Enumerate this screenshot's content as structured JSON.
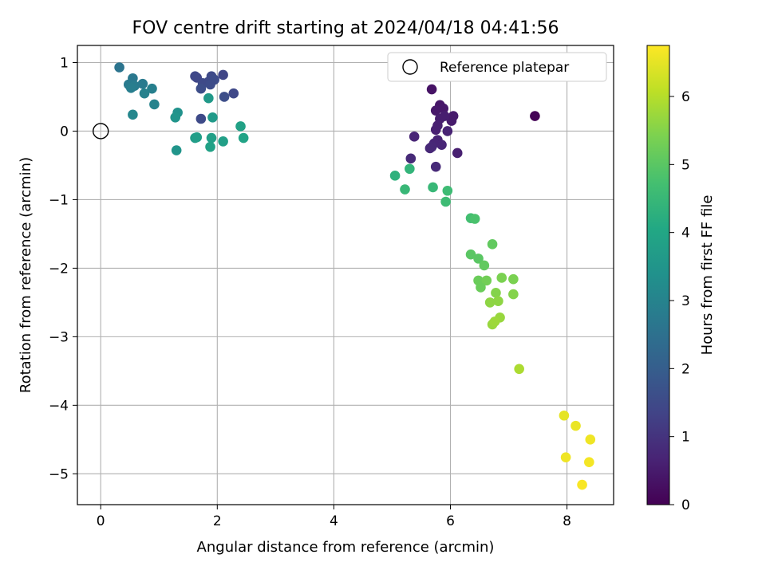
{
  "chart_data": {
    "type": "scatter",
    "title": "FOV centre drift starting at 2024/04/18 04:41:56",
    "xlabel": "Angular distance from reference (arcmin)",
    "ylabel": "Rotation from reference (arcmin)",
    "colorbar_label": "Hours from first FF file",
    "xlim": [
      -0.4,
      8.8
    ],
    "ylim": [
      -5.45,
      1.25
    ],
    "clim": [
      0,
      6.75
    ],
    "colormap": "viridis",
    "grid": true,
    "legend_position": "top-right",
    "x_ticks": [
      0,
      2,
      4,
      6,
      8
    ],
    "y_ticks": [
      1,
      0,
      -1,
      -2,
      -3,
      -4,
      -5
    ],
    "colorbar_ticks": [
      0,
      1,
      2,
      3,
      4,
      5,
      6
    ],
    "reference_marker": {
      "label": "Reference platepar",
      "x": 0,
      "y": 0
    },
    "points": [
      {
        "x": 7.45,
        "y": 0.22,
        "c": 0.05
      },
      {
        "x": 5.68,
        "y": 0.61,
        "c": 0.35
      },
      {
        "x": 5.82,
        "y": 0.38,
        "c": 0.4
      },
      {
        "x": 5.88,
        "y": 0.33,
        "c": 0.45
      },
      {
        "x": 5.75,
        "y": 0.3,
        "c": 0.45
      },
      {
        "x": 6.05,
        "y": 0.22,
        "c": 0.5
      },
      {
        "x": 6.02,
        "y": 0.15,
        "c": 0.5
      },
      {
        "x": 5.82,
        "y": 0.18,
        "c": 0.55
      },
      {
        "x": 5.9,
        "y": 0.22,
        "c": 0.55
      },
      {
        "x": 5.78,
        "y": 0.08,
        "c": 0.6
      },
      {
        "x": 5.75,
        "y": 0.02,
        "c": 0.6
      },
      {
        "x": 5.95,
        "y": 0.0,
        "c": 0.65
      },
      {
        "x": 5.38,
        "y": -0.08,
        "c": 0.7
      },
      {
        "x": 5.78,
        "y": -0.13,
        "c": 0.65
      },
      {
        "x": 5.72,
        "y": -0.18,
        "c": 0.7
      },
      {
        "x": 5.85,
        "y": -0.2,
        "c": 0.7
      },
      {
        "x": 5.68,
        "y": -0.23,
        "c": 0.75
      },
      {
        "x": 5.65,
        "y": -0.25,
        "c": 0.75
      },
      {
        "x": 6.12,
        "y": -0.32,
        "c": 0.6
      },
      {
        "x": 5.32,
        "y": -0.4,
        "c": 0.8
      },
      {
        "x": 5.75,
        "y": -0.52,
        "c": 0.8
      },
      {
        "x": 1.65,
        "y": 0.78,
        "c": 1.4
      },
      {
        "x": 1.62,
        "y": 0.8,
        "c": 1.45
      },
      {
        "x": 1.75,
        "y": 0.7,
        "c": 1.5
      },
      {
        "x": 1.85,
        "y": 0.72,
        "c": 1.5
      },
      {
        "x": 1.9,
        "y": 0.8,
        "c": 1.5
      },
      {
        "x": 1.95,
        "y": 0.75,
        "c": 1.55
      },
      {
        "x": 2.1,
        "y": 0.82,
        "c": 1.4
      },
      {
        "x": 1.88,
        "y": 0.68,
        "c": 1.55
      },
      {
        "x": 1.72,
        "y": 0.62,
        "c": 1.6
      },
      {
        "x": 2.28,
        "y": 0.55,
        "c": 1.45
      },
      {
        "x": 2.12,
        "y": 0.5,
        "c": 1.6
      },
      {
        "x": 1.72,
        "y": 0.18,
        "c": 1.5
      },
      {
        "x": 0.32,
        "y": 0.93,
        "c": 2.6
      },
      {
        "x": 0.55,
        "y": 0.77,
        "c": 2.7
      },
      {
        "x": 0.48,
        "y": 0.68,
        "c": 2.75
      },
      {
        "x": 0.58,
        "y": 0.66,
        "c": 2.8
      },
      {
        "x": 0.52,
        "y": 0.63,
        "c": 2.85
      },
      {
        "x": 0.72,
        "y": 0.69,
        "c": 2.75
      },
      {
        "x": 0.88,
        "y": 0.62,
        "c": 2.9
      },
      {
        "x": 0.75,
        "y": 0.55,
        "c": 2.95
      },
      {
        "x": 0.92,
        "y": 0.39,
        "c": 3.0
      },
      {
        "x": 0.55,
        "y": 0.24,
        "c": 3.1
      },
      {
        "x": 1.32,
        "y": 0.27,
        "c": 3.4
      },
      {
        "x": 1.28,
        "y": 0.2,
        "c": 3.5
      },
      {
        "x": 1.85,
        "y": 0.48,
        "c": 3.6
      },
      {
        "x": 1.92,
        "y": 0.2,
        "c": 3.65
      },
      {
        "x": 1.3,
        "y": -0.28,
        "c": 3.5
      },
      {
        "x": 1.62,
        "y": -0.1,
        "c": 3.7
      },
      {
        "x": 1.65,
        "y": -0.09,
        "c": 3.75
      },
      {
        "x": 1.9,
        "y": -0.1,
        "c": 3.8
      },
      {
        "x": 2.1,
        "y": -0.15,
        "c": 3.8
      },
      {
        "x": 1.88,
        "y": -0.23,
        "c": 3.85
      },
      {
        "x": 2.4,
        "y": 0.07,
        "c": 3.85
      },
      {
        "x": 2.45,
        "y": -0.1,
        "c": 3.9
      },
      {
        "x": 5.05,
        "y": -0.65,
        "c": 4.3
      },
      {
        "x": 5.3,
        "y": -0.55,
        "c": 4.4
      },
      {
        "x": 5.22,
        "y": -0.85,
        "c": 4.5
      },
      {
        "x": 5.7,
        "y": -0.82,
        "c": 4.5
      },
      {
        "x": 5.95,
        "y": -0.87,
        "c": 4.6
      },
      {
        "x": 5.92,
        "y": -1.03,
        "c": 4.6
      },
      {
        "x": 6.35,
        "y": -1.27,
        "c": 4.7
      },
      {
        "x": 6.42,
        "y": -1.28,
        "c": 4.8
      },
      {
        "x": 6.72,
        "y": -1.65,
        "c": 5.1
      },
      {
        "x": 6.35,
        "y": -1.8,
        "c": 5.0
      },
      {
        "x": 6.48,
        "y": -1.86,
        "c": 5.0
      },
      {
        "x": 6.58,
        "y": -1.96,
        "c": 5.1
      },
      {
        "x": 6.48,
        "y": -2.18,
        "c": 5.2
      },
      {
        "x": 6.62,
        "y": -2.18,
        "c": 5.3
      },
      {
        "x": 6.52,
        "y": -2.28,
        "c": 5.2
      },
      {
        "x": 6.88,
        "y": -2.14,
        "c": 5.4
      },
      {
        "x": 7.08,
        "y": -2.16,
        "c": 5.4
      },
      {
        "x": 6.78,
        "y": -2.36,
        "c": 5.5
      },
      {
        "x": 7.08,
        "y": -2.38,
        "c": 5.5
      },
      {
        "x": 6.68,
        "y": -2.5,
        "c": 5.6
      },
      {
        "x": 6.82,
        "y": -2.48,
        "c": 5.6
      },
      {
        "x": 6.85,
        "y": -2.72,
        "c": 5.7
      },
      {
        "x": 6.72,
        "y": -2.82,
        "c": 5.7
      },
      {
        "x": 6.76,
        "y": -2.78,
        "c": 5.75
      },
      {
        "x": 7.18,
        "y": -3.47,
        "c": 5.9
      },
      {
        "x": 7.95,
        "y": -4.15,
        "c": 6.5
      },
      {
        "x": 8.15,
        "y": -4.3,
        "c": 6.55
      },
      {
        "x": 8.4,
        "y": -4.5,
        "c": 6.6
      },
      {
        "x": 7.98,
        "y": -4.76,
        "c": 6.6
      },
      {
        "x": 8.38,
        "y": -4.83,
        "c": 6.65
      },
      {
        "x": 8.26,
        "y": -5.16,
        "c": 6.7
      }
    ]
  }
}
